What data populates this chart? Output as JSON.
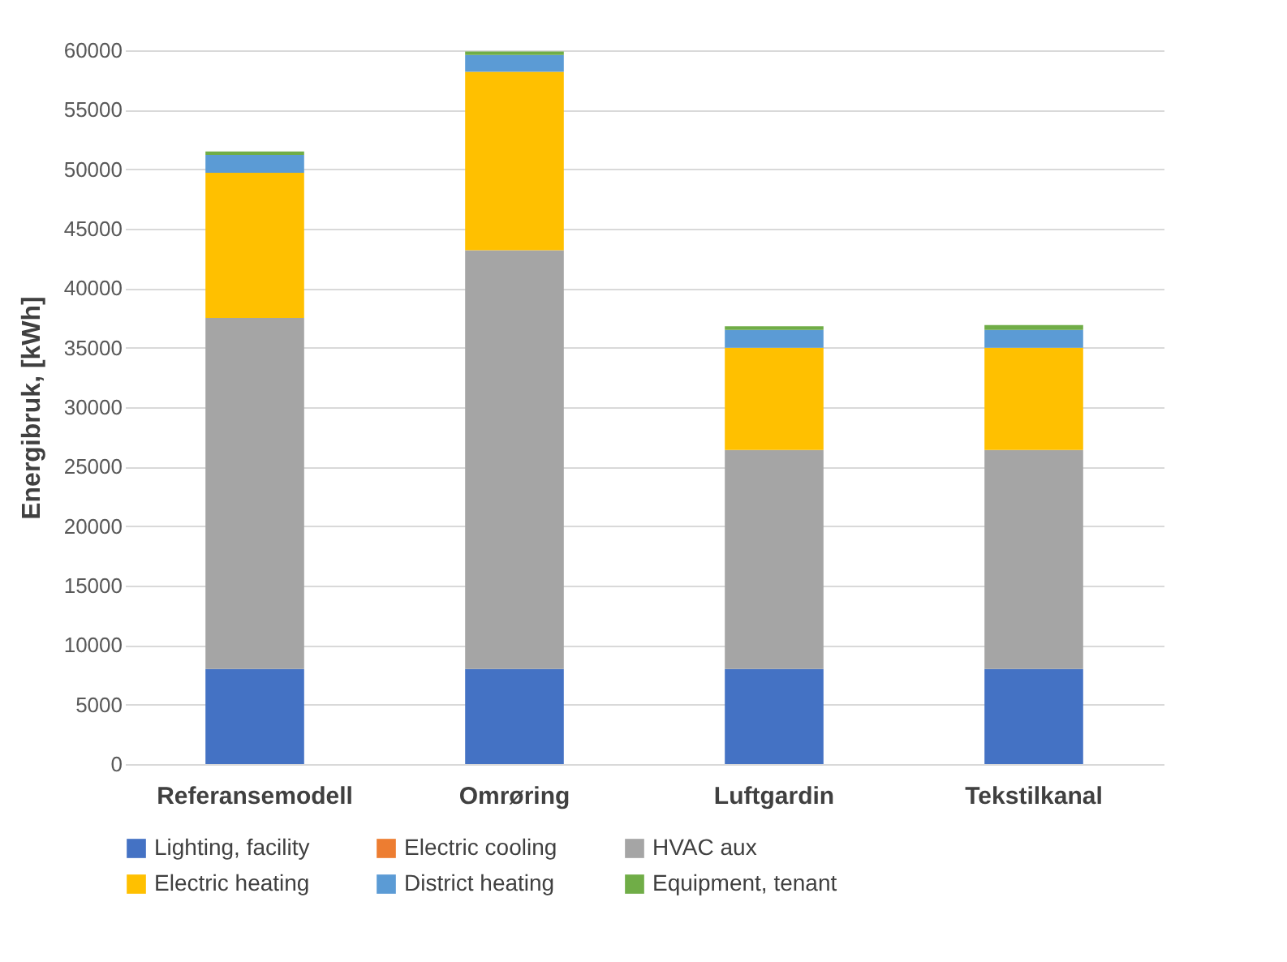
{
  "chart_data": {
    "type": "bar",
    "stacked": true,
    "ylabel": "Energibruk, [kWh]",
    "categories": [
      "Referansemodell",
      "Omrøring",
      "Luftgardin",
      "Tekstilkanal"
    ],
    "series": [
      {
        "name": "Lighting, facility",
        "color": "#4472c4",
        "values": [
          8000,
          8000,
          8000,
          8000
        ]
      },
      {
        "name": "Electric cooling",
        "color": "#ed7d31",
        "values": [
          0,
          0,
          0,
          0
        ]
      },
      {
        "name": "HVAC aux",
        "color": "#a5a5a5",
        "values": [
          29500,
          35200,
          18400,
          18400
        ]
      },
      {
        "name": "Electric heating",
        "color": "#ffc000",
        "values": [
          12200,
          15000,
          8600,
          8600
        ]
      },
      {
        "name": "District heating",
        "color": "#5b9bd5",
        "values": [
          1500,
          1400,
          1500,
          1500
        ]
      },
      {
        "name": "Equipment, tenant",
        "color": "#70ad47",
        "values": [
          300,
          300,
          300,
          400
        ]
      }
    ],
    "ylim": [
      0,
      60000
    ],
    "yticks": [
      0,
      5000,
      10000,
      15000,
      20000,
      25000,
      30000,
      35000,
      40000,
      45000,
      50000,
      55000,
      60000
    ],
    "grid": "y",
    "legend": "bottom"
  }
}
